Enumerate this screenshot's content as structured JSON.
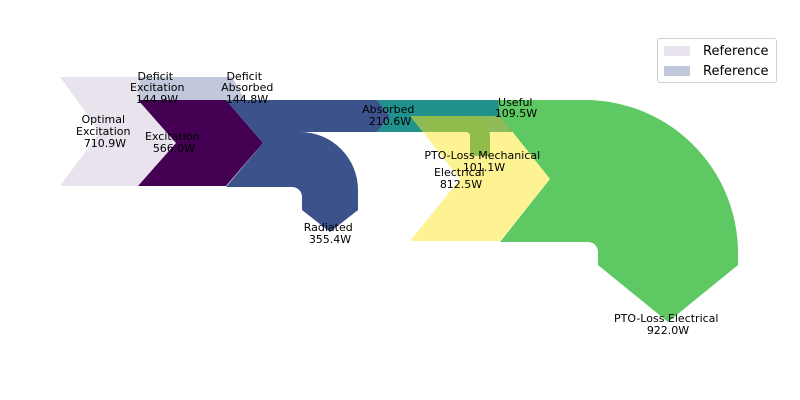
{
  "title": "",
  "colors": {
    "reference_1": "#e8e3ec",
    "reference_2": "#c2c8db",
    "excitation": "#440154",
    "blue_flow": "#3b528b",
    "teal_flow": "#21918c",
    "green_flow": "#5ec962",
    "yellow_flow": "#fde725"
  },
  "legend": [
    {
      "label": "Reference",
      "color": "#e8e3ec"
    },
    {
      "label": "Reference",
      "color": "#c2c8db"
    }
  ],
  "flows": {
    "optimal_excitation": {
      "line1": "Optimal",
      "line2": "Excitation",
      "value": "710.9W"
    },
    "deficit_excitation": {
      "line1": "Deficit",
      "line2": "Excitation",
      "value": "144.9W"
    },
    "excitation": {
      "line1": "Excitation",
      "value": "566.0W"
    },
    "deficit_absorbed": {
      "line1": "Deficit",
      "line2": "Absorbed",
      "value": "144.8W"
    },
    "absorbed": {
      "line1": "Absorbed",
      "value": "210.6W"
    },
    "radiated": {
      "line1": "Radiated",
      "value": "355.4W"
    },
    "useful": {
      "line1": "Useful",
      "value": "109.5W"
    },
    "pto_loss_mechanical": {
      "line1": "PTO-Loss Mechanical",
      "value": "101.1W"
    },
    "electrical": {
      "line1": "Electrical",
      "value": "812.5W"
    },
    "pto_loss_electrical": {
      "line1": "PTO-Loss Electrical",
      "value": "922.0W"
    }
  }
}
